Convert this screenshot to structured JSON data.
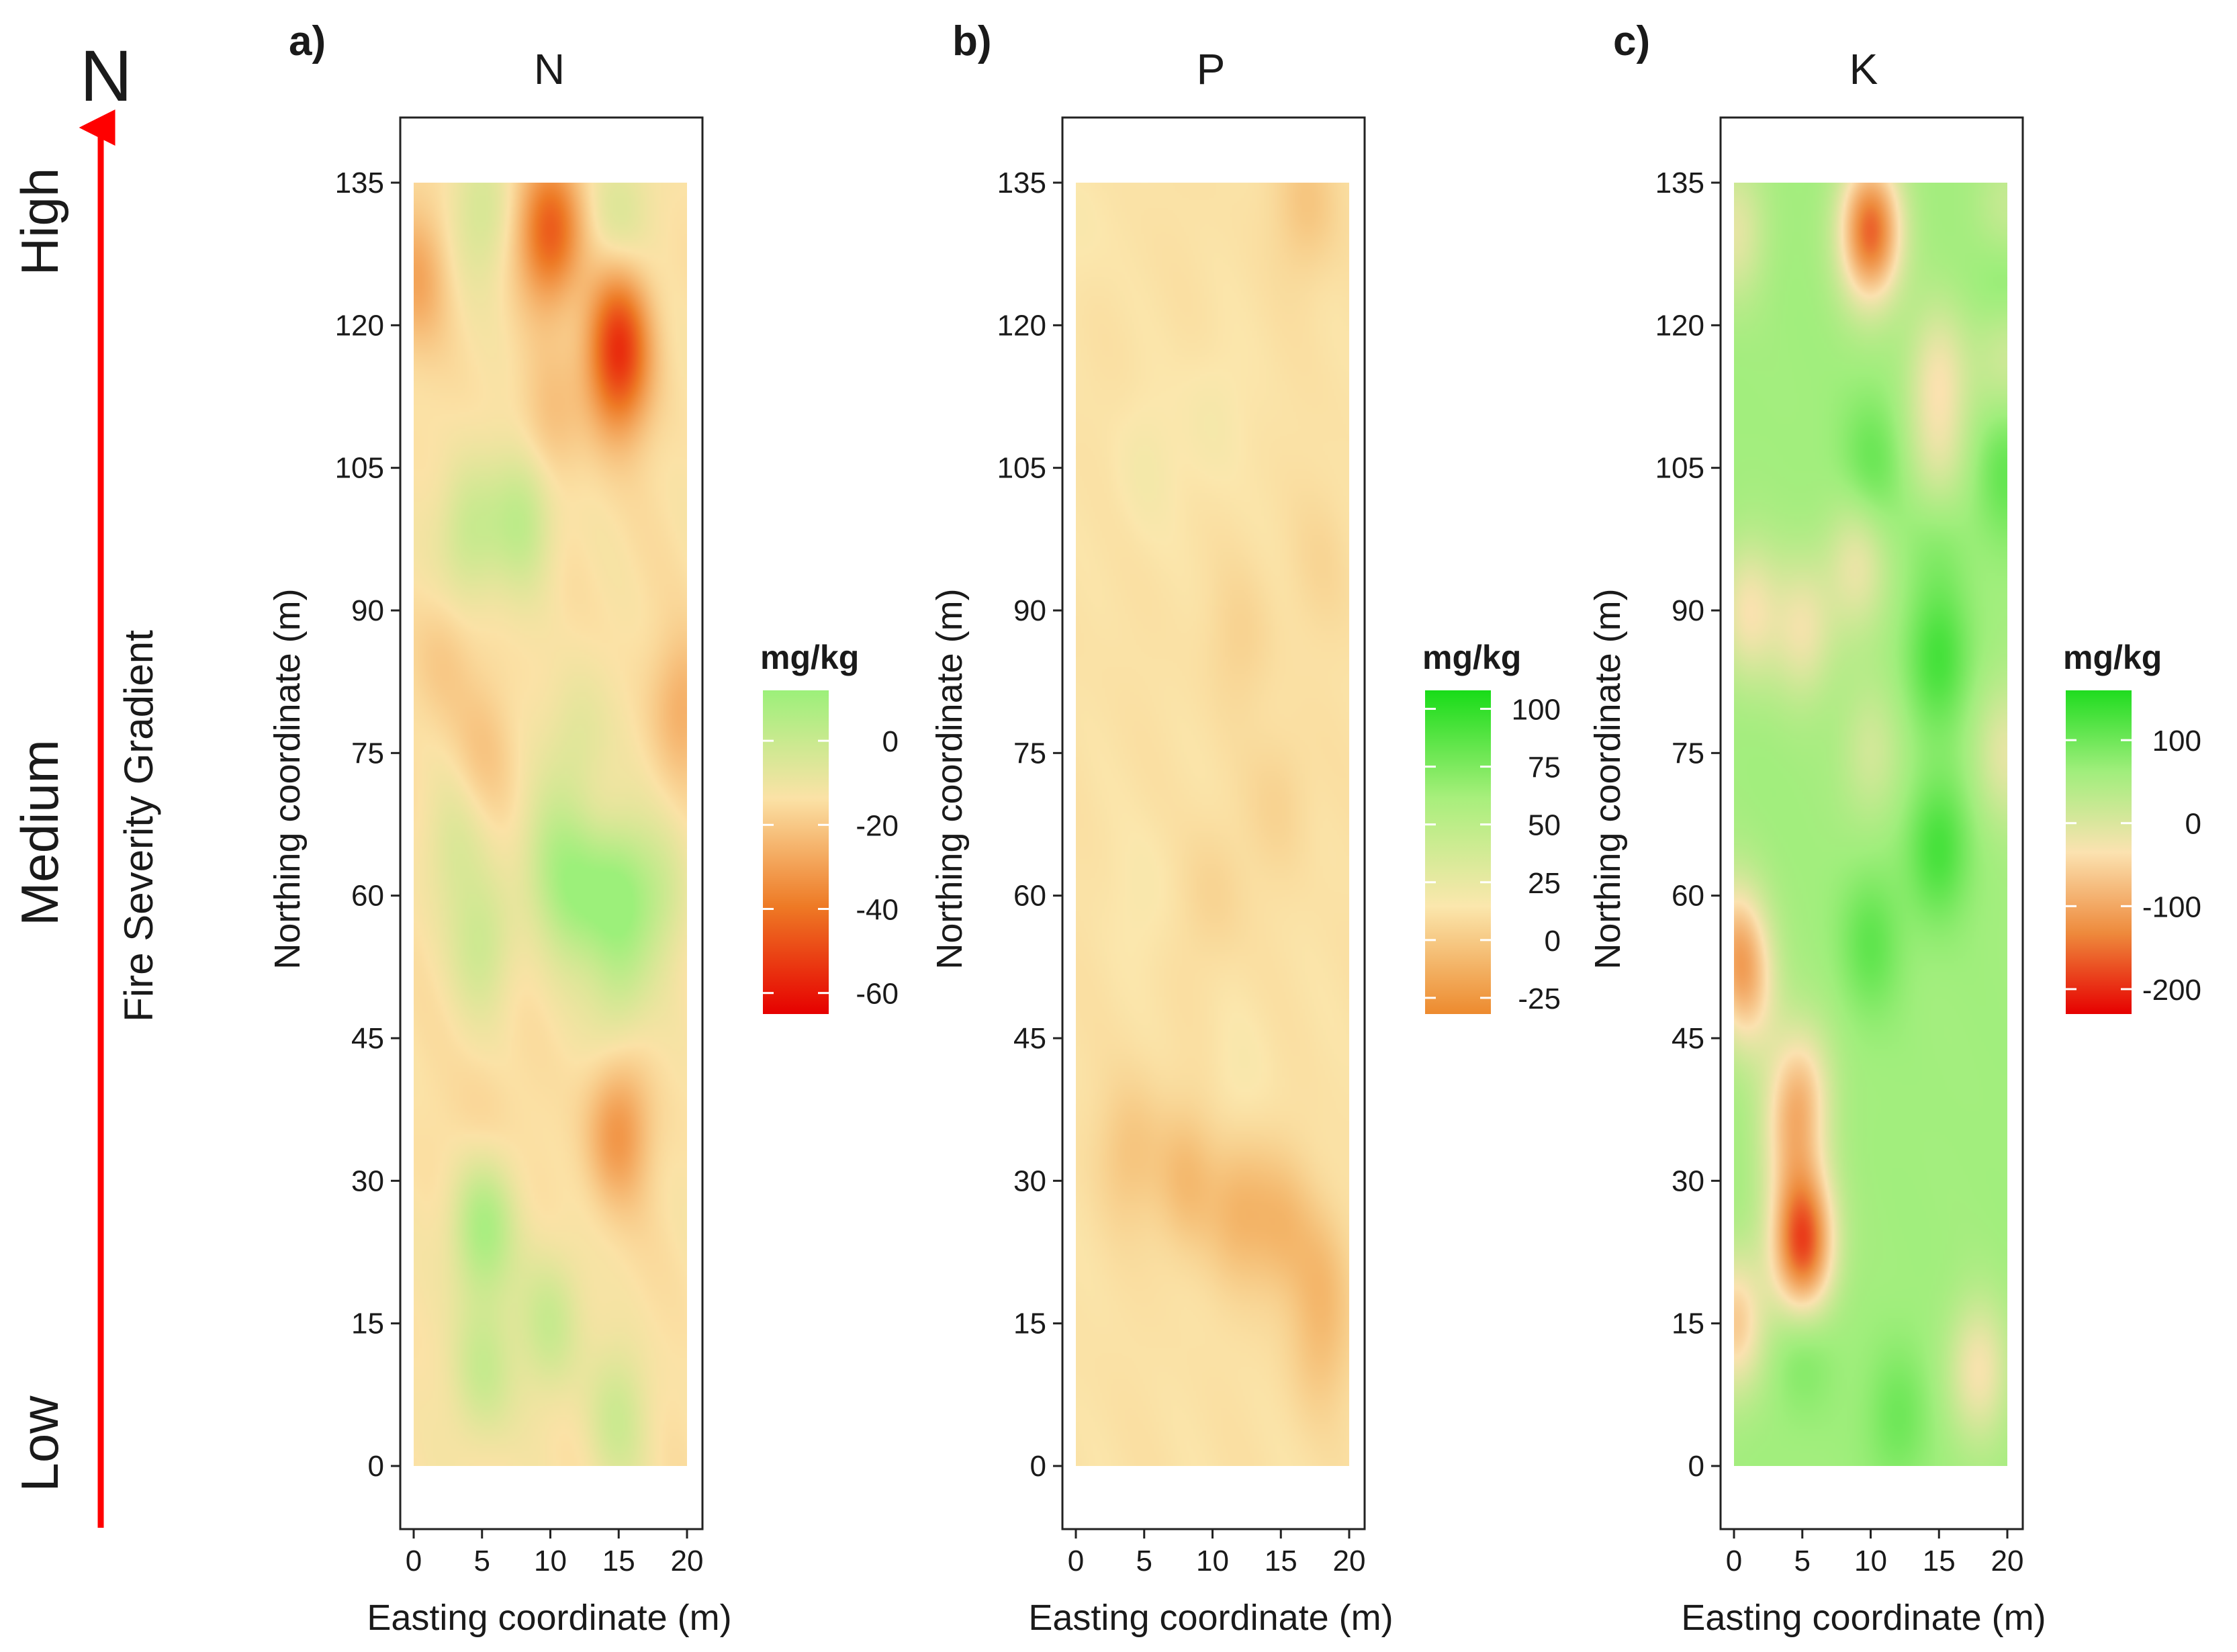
{
  "north_label": "N",
  "gradient": {
    "title": "Fire Severity Gradient",
    "levels": {
      "high": "High",
      "medium": "Medium",
      "low": "Low"
    },
    "arrow_color": "#ff0000"
  },
  "chart_data": [
    {
      "type": "heatmap",
      "panel_label": "a)",
      "title": "N",
      "xlabel": "Easting coordinate (m)",
      "ylabel": "Northing coordinate (m)",
      "x_ticks": [
        0,
        5,
        10,
        15,
        20
      ],
      "y_ticks": [
        0,
        15,
        30,
        45,
        60,
        75,
        90,
        105,
        120,
        135
      ],
      "xlim": [
        0,
        20
      ],
      "ylim": [
        0,
        135
      ],
      "grid": false,
      "legend": {
        "title": "mg/kg",
        "position": "right",
        "range": [
          -65,
          12
        ],
        "ticks": [
          0,
          -20,
          -40,
          -60
        ],
        "colors": [
          "#e60000",
          "#ee7a25",
          "#fbe2a6",
          "#9cf07a"
        ]
      },
      "base": -14,
      "anomalies": [
        {
          "x": 10,
          "y": 130,
          "value": -46
        },
        {
          "x": 15,
          "y": 120,
          "value": -36
        },
        {
          "x": 15,
          "y": 115,
          "value": -38
        },
        {
          "x": 0,
          "y": 125,
          "value": -28
        },
        {
          "x": 10,
          "y": 110,
          "value": -22
        },
        {
          "x": 20,
          "y": 80,
          "value": -26
        },
        {
          "x": 15,
          "y": 35,
          "value": -32
        },
        {
          "x": 5,
          "y": 75,
          "value": -20
        },
        {
          "x": 2,
          "y": 85,
          "value": -20
        },
        {
          "x": 5,
          "y": 35,
          "value": -18
        },
        {
          "x": 8,
          "y": 100,
          "value": 2
        },
        {
          "x": 4,
          "y": 98,
          "value": 0
        },
        {
          "x": 12,
          "y": 60,
          "value": 5
        },
        {
          "x": 15,
          "y": 60,
          "value": 8
        },
        {
          "x": 5,
          "y": 25,
          "value": 8
        },
        {
          "x": 5,
          "y": 10,
          "value": 0
        },
        {
          "x": 10,
          "y": 15,
          "value": 0
        },
        {
          "x": 15,
          "y": 5,
          "value": -2
        },
        {
          "x": 5,
          "y": 55,
          "value": -2
        },
        {
          "x": 15,
          "y": 50,
          "value": -4
        },
        {
          "x": 18,
          "y": 60,
          "value": -3
        },
        {
          "x": 5,
          "y": 132,
          "value": -4
        },
        {
          "x": 15,
          "y": 131,
          "value": -4
        },
        {
          "x": 12,
          "y": 76,
          "value": -6
        },
        {
          "x": 10,
          "y": 64,
          "value": -2
        },
        {
          "x": 3,
          "y": 65,
          "value": -6
        }
      ]
    },
    {
      "type": "heatmap",
      "panel_label": "b)",
      "title": "P",
      "xlabel": "Easting coordinate (m)",
      "ylabel": "Northing coordinate (m)",
      "x_ticks": [
        0,
        5,
        10,
        15,
        20
      ],
      "y_ticks": [
        0,
        15,
        30,
        45,
        60,
        75,
        90,
        105,
        120,
        135
      ],
      "xlim": [
        0,
        20
      ],
      "ylim": [
        0,
        135
      ],
      "grid": false,
      "legend": {
        "title": "mg/kg",
        "position": "right",
        "range": [
          -32,
          108
        ],
        "ticks": [
          100,
          75,
          50,
          25,
          0,
          -25
        ],
        "colors": [
          "#ed8a2e",
          "#fbe7ad",
          "#a8ef7c",
          "#18dc18"
        ]
      },
      "base": 12,
      "anomalies": [
        {
          "x": 8,
          "y": 30,
          "value": -6
        },
        {
          "x": 12,
          "y": 27,
          "value": -8
        },
        {
          "x": 15,
          "y": 25,
          "value": -6
        },
        {
          "x": 4,
          "y": 33,
          "value": -2
        },
        {
          "x": 18,
          "y": 20,
          "value": -2
        },
        {
          "x": 18,
          "y": 12,
          "value": 0
        },
        {
          "x": 17,
          "y": 133,
          "value": -2
        },
        {
          "x": 12,
          "y": 87,
          "value": 5
        },
        {
          "x": 18,
          "y": 95,
          "value": 7
        },
        {
          "x": 10,
          "y": 60,
          "value": 5
        },
        {
          "x": 15,
          "y": 70,
          "value": 5
        },
        {
          "x": 5,
          "y": 105,
          "value": 18
        },
        {
          "x": 10,
          "y": 110,
          "value": 18
        },
        {
          "x": 5,
          "y": 60,
          "value": 16
        },
        {
          "x": 12,
          "y": 40,
          "value": 16
        },
        {
          "x": 0,
          "y": 130,
          "value": 16
        }
      ]
    },
    {
      "type": "heatmap",
      "panel_label": "c)",
      "title": "K",
      "xlabel": "Easting coordinate (m)",
      "ylabel": "Northing coordinate (m)",
      "x_ticks": [
        0,
        5,
        10,
        15,
        20
      ],
      "y_ticks": [
        0,
        15,
        30,
        45,
        60,
        75,
        90,
        105,
        120,
        135
      ],
      "xlim": [
        0,
        20
      ],
      "ylim": [
        0,
        135
      ],
      "grid": false,
      "legend": {
        "title": "mg/kg",
        "position": "right",
        "range": [
          -230,
          160
        ],
        "ticks": [
          100,
          0,
          -100,
          -200
        ],
        "colors": [
          "#e60000",
          "#ee8a3c",
          "#fbe2b0",
          "#a0ee7c",
          "#1fdc1f"
        ]
      },
      "base": 60,
      "anomalies": [
        {
          "x": 10,
          "y": 130,
          "value": -160
        },
        {
          "x": 5,
          "y": 25,
          "value": -100
        },
        {
          "x": 5,
          "y": 20,
          "value": -70
        },
        {
          "x": 0,
          "y": 15,
          "value": -60
        },
        {
          "x": 0,
          "y": 55,
          "value": -50
        },
        {
          "x": 1,
          "y": 50,
          "value": -30
        },
        {
          "x": 5,
          "y": 40,
          "value": -30
        },
        {
          "x": 4,
          "y": 35,
          "value": -20
        },
        {
          "x": 1,
          "y": 90,
          "value": -30
        },
        {
          "x": 5,
          "y": 88,
          "value": -20
        },
        {
          "x": 9,
          "y": 95,
          "value": -20
        },
        {
          "x": 15,
          "y": 115,
          "value": -20
        },
        {
          "x": 20,
          "y": 118,
          "value": -10
        },
        {
          "x": 18,
          "y": 10,
          "value": -30
        },
        {
          "x": 15,
          "y": 105,
          "value": -10
        },
        {
          "x": 20,
          "y": 75,
          "value": -10
        },
        {
          "x": 20,
          "y": 130,
          "value": -10
        },
        {
          "x": 0,
          "y": 130,
          "value": -10
        },
        {
          "x": 10,
          "y": 75,
          "value": 10
        },
        {
          "x": 15,
          "y": 85,
          "value": 130
        },
        {
          "x": 20,
          "y": 125,
          "value": 140
        },
        {
          "x": 10,
          "y": 105,
          "value": 110
        },
        {
          "x": 20,
          "y": 105,
          "value": 110
        },
        {
          "x": 15,
          "y": 65,
          "value": 130
        },
        {
          "x": 5,
          "y": 15,
          "value": 130
        },
        {
          "x": 10,
          "y": 55,
          "value": 110
        },
        {
          "x": 15,
          "y": 100,
          "value": 100
        },
        {
          "x": 12,
          "y": 5,
          "value": 100
        }
      ]
    }
  ]
}
